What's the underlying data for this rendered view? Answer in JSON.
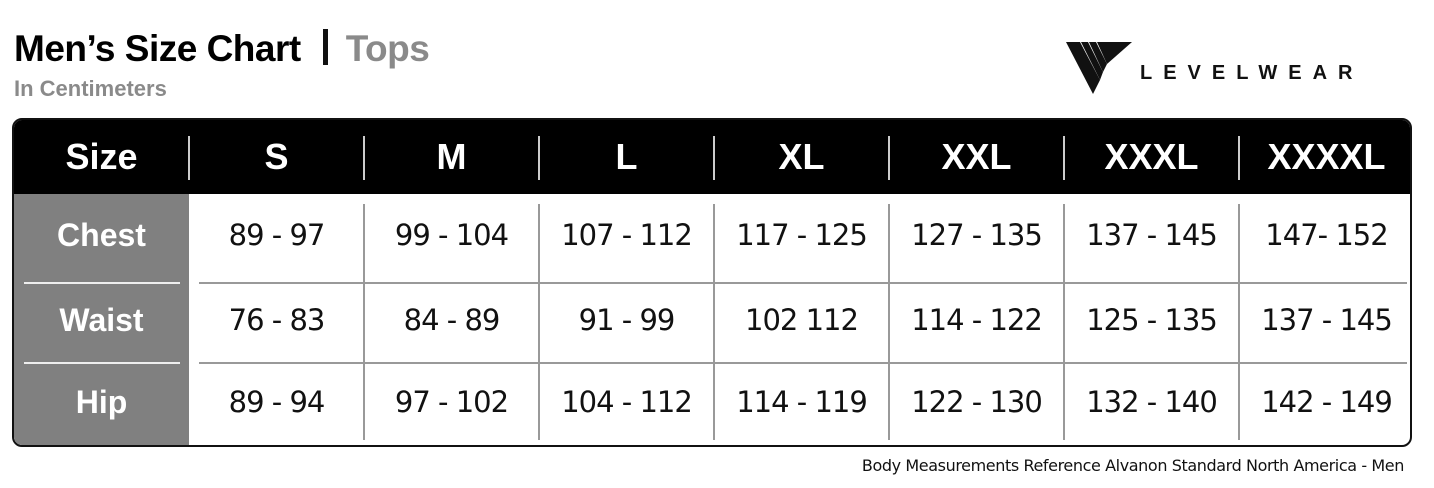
{
  "header": {
    "title": "Men’s Size Chart",
    "category": "Tops",
    "subtitle": "In Centimeters",
    "logo_text": "LEVELWEAR"
  },
  "table": {
    "columns": [
      "Size",
      "S",
      "M",
      "L",
      "XL",
      "XXL",
      "XXXL",
      "XXXXL"
    ],
    "rows": [
      {
        "label": "Chest",
        "values": [
          "89 - 97",
          "99 - 104",
          "107 - 112",
          "117 - 125",
          "127 - 135",
          "137 - 145",
          "147- 152"
        ]
      },
      {
        "label": "Waist",
        "values": [
          "76 - 83",
          "84 - 89",
          "91 - 99",
          "102 112",
          "114 - 122",
          "125 - 135",
          "137 - 145"
        ]
      },
      {
        "label": "Hip",
        "values": [
          "89 - 94",
          "97 - 102",
          "104 - 112",
          "114 - 119",
          "122 - 130",
          "132 - 140",
          "142 - 149"
        ]
      }
    ]
  },
  "colors": {
    "header_bg": "#000000",
    "label_col_bg": "#808080",
    "category_text": "#8a8a8a"
  },
  "footer": "Body Measurements Reference Alvanon Standard North America - Men"
}
